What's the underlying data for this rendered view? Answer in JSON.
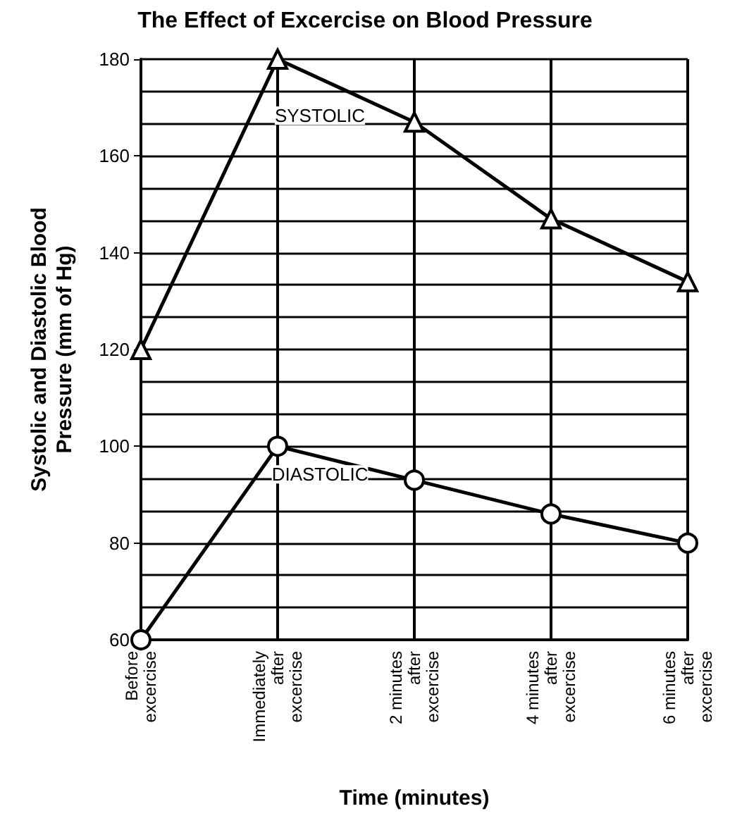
{
  "chart_data": {
    "type": "line",
    "title": "The Effect of Excercise on Blood Pressure",
    "xlabel": "Time (minutes)",
    "ylabel": "Systolic and Diastolic Blood\nPressure (mm of Hg)",
    "categories": [
      "Before\nexcercise",
      "Immediately\nafter\nexcercise",
      "2 minutes\nafter\nexcercise",
      "4 minutes\nafter\nexcercise",
      "6 minutes\nafter\nexcercise"
    ],
    "series": [
      {
        "name": "SYSTOLIC",
        "color": "#000000",
        "marker": "triangle",
        "values": [
          120,
          180,
          167,
          147,
          134
        ]
      },
      {
        "name": "DIASTOLIC",
        "color": "#000000",
        "marker": "circle",
        "values": [
          60,
          100,
          93,
          86,
          80
        ]
      }
    ],
    "ylim": [
      60,
      180
    ],
    "yticks": [
      60,
      80,
      100,
      120,
      140,
      160,
      180
    ],
    "grid": true,
    "line_style": "solid"
  }
}
